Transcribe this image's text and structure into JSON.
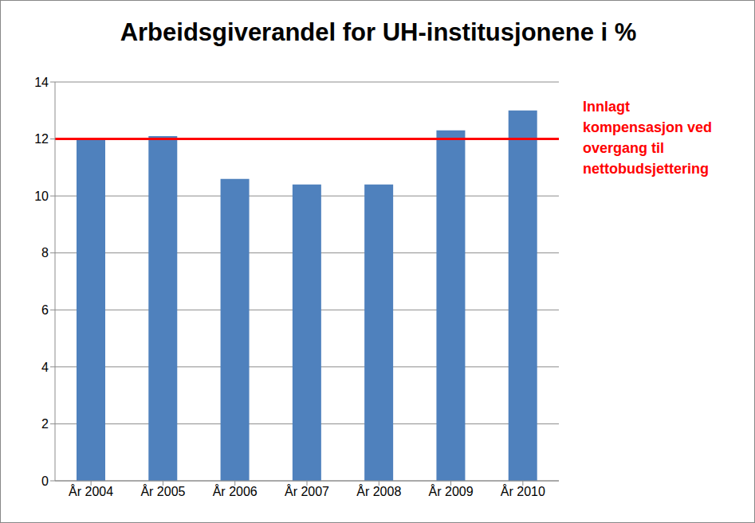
{
  "chart_data": {
    "type": "bar",
    "title": "Arbeidsgiverandel for UH-institusjonene i %",
    "categories": [
      "År 2004",
      "År 2005",
      "År 2006",
      "År 2007",
      "År 2008",
      "År 2009",
      "År 2010"
    ],
    "values": [
      12.0,
      12.1,
      10.6,
      10.4,
      10.4,
      12.3,
      13.0
    ],
    "color": "#4f81bd",
    "ylim": [
      0,
      14
    ],
    "yticks": [
      0,
      2,
      4,
      6,
      8,
      10,
      12,
      14
    ],
    "grid": true,
    "annotation": {
      "text": "Innlagt kompensasjon ved overgang til nettobudsjettering",
      "y": 12,
      "color": "#ff0000"
    }
  }
}
